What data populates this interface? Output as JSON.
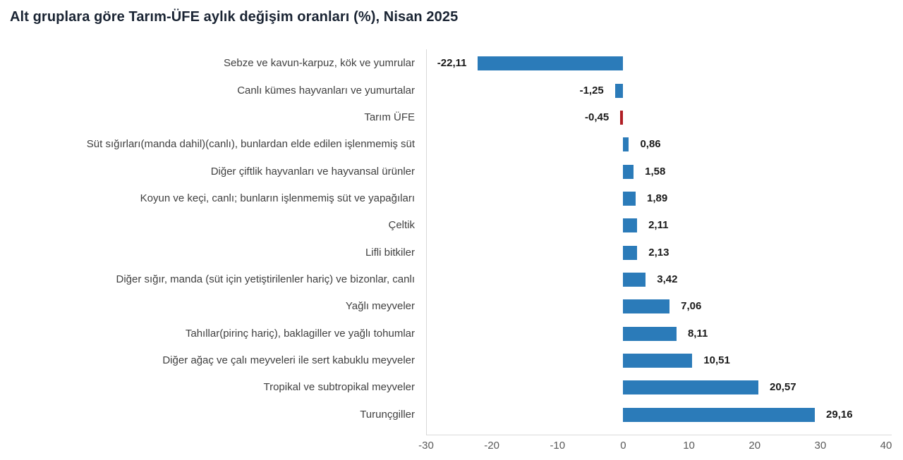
{
  "chart_data": {
    "type": "bar",
    "orientation": "horizontal",
    "title": "Alt gruplara göre Tarım-ÜFE aylık değişim oranları (%), Nisan 2025",
    "xlabel": "",
    "ylabel": "",
    "xlim": [
      -30,
      40
    ],
    "x_ticks": [
      "-30",
      "-20",
      "-10",
      "0",
      "10",
      "20",
      "30",
      "40"
    ],
    "grid": false,
    "legend": "none",
    "value_label_format": "turkish-decimal-comma",
    "colors": {
      "bar": "#2B7BB9",
      "highlight_bar": "#B01E24",
      "title_text": "#1A2433",
      "category_text": "#404040",
      "value_text": "#1A1A1A",
      "axis_line": "#D9D9D9",
      "tick_text": "#595959",
      "background": "#FFFFFF"
    },
    "rows": [
      {
        "label": "Sebze ve kavun-karpuz, kök ve yumrular",
        "value": -22.11,
        "display": "-22,11",
        "highlight": false
      },
      {
        "label": "Canlı kümes hayvanları ve yumurtalar",
        "value": -1.25,
        "display": "-1,25",
        "highlight": false
      },
      {
        "label": "Tarım ÜFE",
        "value": -0.45,
        "display": "-0,45",
        "highlight": true
      },
      {
        "label": "Süt sığırları(manda dahil)(canlı), bunlardan elde edilen işlenmemiş süt",
        "value": 0.86,
        "display": "0,86",
        "highlight": false
      },
      {
        "label": "Diğer çiftlik hayvanları ve hayvansal ürünler",
        "value": 1.58,
        "display": "1,58",
        "highlight": false
      },
      {
        "label": "Koyun ve keçi, canlı; bunların işlenmemiş süt ve yapağıları",
        "value": 1.89,
        "display": "1,89",
        "highlight": false
      },
      {
        "label": "Çeltik",
        "value": 2.11,
        "display": "2,11",
        "highlight": false
      },
      {
        "label": "Lifli bitkiler",
        "value": 2.13,
        "display": "2,13",
        "highlight": false
      },
      {
        "label": "Diğer sığır, manda (süt için yetiştirilenler hariç) ve bizonlar, canlı",
        "value": 3.42,
        "display": "3,42",
        "highlight": false
      },
      {
        "label": "Yağlı meyveler",
        "value": 7.06,
        "display": "7,06",
        "highlight": false
      },
      {
        "label": "Tahıllar(pirinç hariç), baklagiller ve yağlı tohumlar",
        "value": 8.11,
        "display": "8,11",
        "highlight": false
      },
      {
        "label": "Diğer ağaç ve çalı meyveleri ile sert kabuklu meyveler",
        "value": 10.51,
        "display": "10,51",
        "highlight": false
      },
      {
        "label": "Tropikal ve subtropikal meyveler",
        "value": 20.57,
        "display": "20,57",
        "highlight": false
      },
      {
        "label": "Turunçgiller",
        "value": 29.16,
        "display": "29,16",
        "highlight": false
      }
    ]
  }
}
